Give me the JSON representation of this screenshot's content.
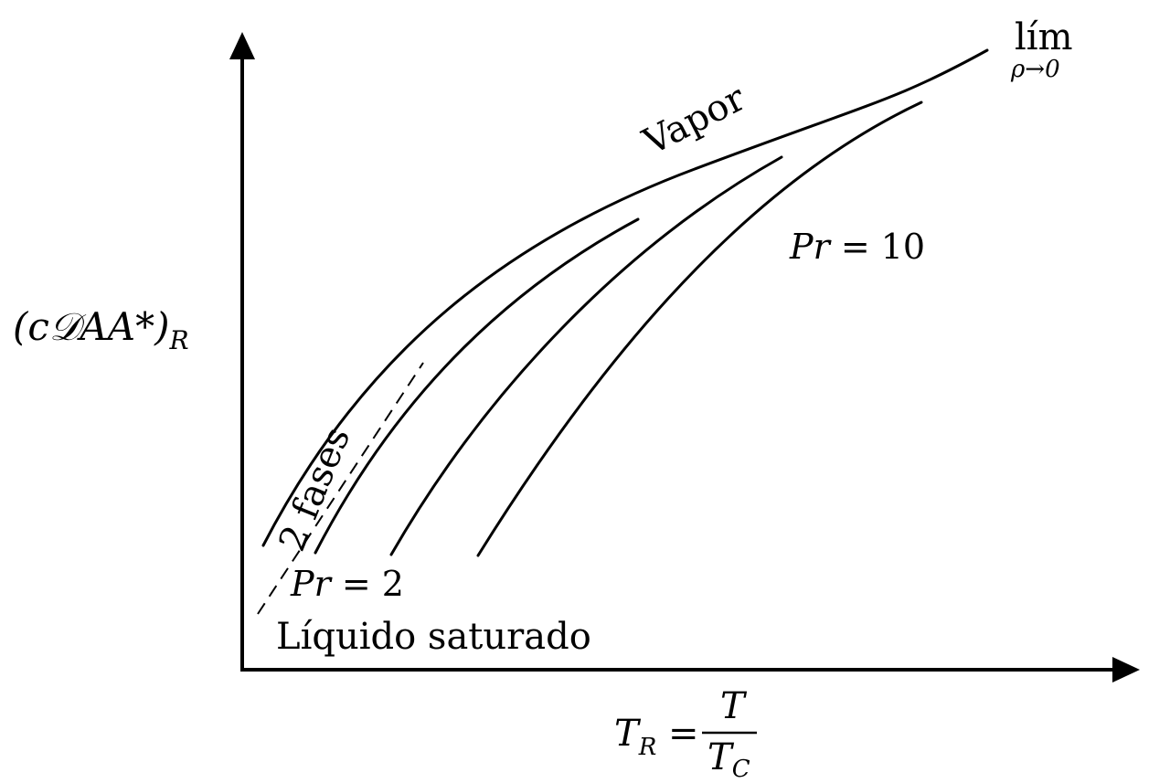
{
  "labels": {
    "y_axis": "(c𝒟AA*)",
    "y_axis_sub": "R",
    "x_axis_lhs": "T",
    "x_axis_lhs_sub": "R",
    "x_axis_eq": " = ",
    "x_axis_num": "T",
    "x_axis_den": "T",
    "x_axis_den_sub": "C",
    "lim_top": "lím",
    "lim_sub": "ρ→0",
    "vapor": "Vapor",
    "pr10_var": "Pr",
    "pr10_val": " = 10",
    "pr2_var": "Pr",
    "pr2_val": " = 2",
    "dos_fases": "2 fases",
    "liquido": "Líquido saturado"
  }
}
